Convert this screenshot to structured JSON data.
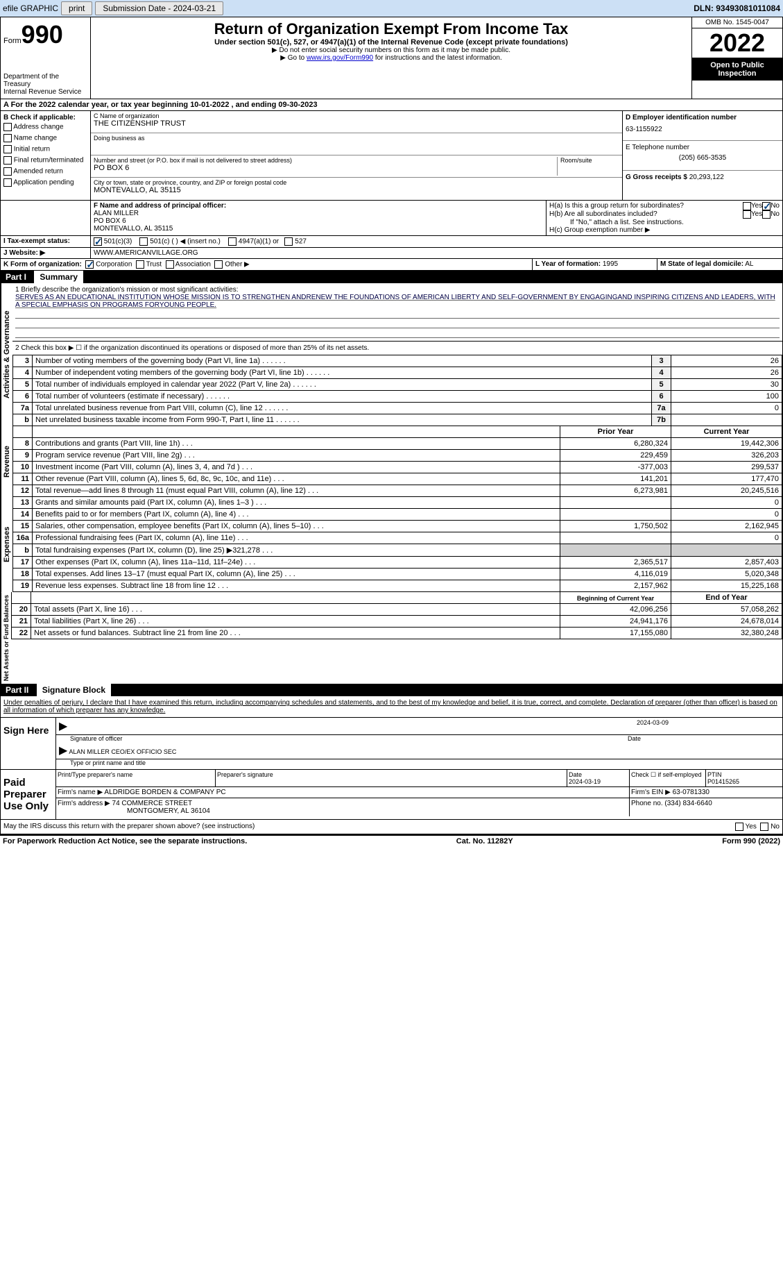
{
  "efile": {
    "graphic": "efile GRAPHIC",
    "print": "print",
    "submission": "Submission Date - 2024-03-21",
    "dln": "DLN: 93493081011084"
  },
  "header": {
    "form": "Form",
    "formnum": "990",
    "dept": "Department of the Treasury",
    "irs": "Internal Revenue Service",
    "title": "Return of Organization Exempt From Income Tax",
    "sub": "Under section 501(c), 527, or 4947(a)(1) of the Internal Revenue Code (except private foundations)",
    "note1": "▶ Do not enter social security numbers on this form as it may be made public.",
    "note2_pre": "▶ Go to ",
    "note2_link": "www.irs.gov/Form990",
    "note2_post": " for instructions and the latest information.",
    "omb": "OMB No. 1545-0047",
    "year": "2022",
    "open": "Open to Public Inspection"
  },
  "a_row": "A For the 2022 calendar year, or tax year beginning 10-01-2022    , and ending 09-30-2023",
  "b": {
    "title": "B Check if applicable:",
    "items": [
      "Address change",
      "Name change",
      "Initial return",
      "Final return/terminated",
      "Amended return",
      "Application pending"
    ]
  },
  "c": {
    "name_label": "C Name of organization",
    "name": "THE CITIZENSHIP TRUST",
    "dba_label": "Doing business as",
    "dba": "",
    "addr_label": "Number and street (or P.O. box if mail is not delivered to street address)",
    "addr": "PO BOX 6",
    "room_label": "Room/suite",
    "city_label": "City or town, state or province, country, and ZIP or foreign postal code",
    "city": "MONTEVALLO, AL  35115"
  },
  "d": {
    "label": "D Employer identification number",
    "val": "63-1155922"
  },
  "e": {
    "label": "E Telephone number",
    "val": "(205) 665-3535"
  },
  "g": {
    "label": "G Gross receipts $",
    "val": "20,293,122"
  },
  "f": {
    "label": "F Name and address of principal officer:",
    "name": "ALAN MILLER",
    "addr": "PO BOX 6",
    "city": "MONTEVALLO, AL  35115"
  },
  "h": {
    "a": "H(a)  Is this a group return for subordinates?",
    "b": "H(b)  Are all subordinates included?",
    "note": "If \"No,\" attach a list. See instructions.",
    "c": "H(c)  Group exemption number ▶"
  },
  "i": {
    "label": "I   Tax-exempt status:",
    "opts": [
      "501(c)(3)",
      "501(c) (  ) ◀ (insert no.)",
      "4947(a)(1) or",
      "527"
    ]
  },
  "j": {
    "label": "J   Website: ▶",
    "val": "WWW.AMERICANVILLAGE.ORG"
  },
  "k": {
    "label": "K Form of organization:",
    "opts": [
      "Corporation",
      "Trust",
      "Association",
      "Other ▶"
    ]
  },
  "l": {
    "label": "L Year of formation:",
    "val": "1995"
  },
  "m": {
    "label": "M State of legal domicile:",
    "val": "AL"
  },
  "part1": {
    "label": "Part I",
    "title": "Summary",
    "line1_label": "1  Briefly describe the organization's mission or most significant activities:",
    "mission": "SERVES AS AN EDUCATIONAL INSTITUTION WHOSE MISSION IS TO STRENGTHEN ANDRENEW THE FOUNDATIONS OF AMERICAN LIBERTY AND SELF-GOVERNMENT BY ENGAGINGAND INSPIRING CITIZENS AND LEADERS, WITH A SPECIAL EMPHASIS ON PROGRAMS FORYOUNG PEOPLE.",
    "line2": "2   Check this box ▶ ☐  if the organization discontinued its operations or disposed of more than 25% of its net assets.",
    "vert_ag": "Activities & Governance",
    "vert_rev": "Revenue",
    "vert_exp": "Expenses",
    "vert_net": "Net Assets or Fund Balances",
    "governance": [
      {
        "n": "3",
        "t": "Number of voting members of the governing body (Part VI, line 1a)",
        "b": "3",
        "v": "26"
      },
      {
        "n": "4",
        "t": "Number of independent voting members of the governing body (Part VI, line 1b)",
        "b": "4",
        "v": "26"
      },
      {
        "n": "5",
        "t": "Total number of individuals employed in calendar year 2022 (Part V, line 2a)",
        "b": "5",
        "v": "30"
      },
      {
        "n": "6",
        "t": "Total number of volunteers (estimate if necessary)",
        "b": "6",
        "v": "100"
      },
      {
        "n": "7a",
        "t": "Total unrelated business revenue from Part VIII, column (C), line 12",
        "b": "7a",
        "v": "0"
      },
      {
        "n": "b",
        "t": "Net unrelated business taxable income from Form 990-T, Part I, line 11",
        "b": "7b",
        "v": ""
      }
    ],
    "col_prior": "Prior Year",
    "col_current": "Current Year",
    "revenue": [
      {
        "n": "8",
        "t": "Contributions and grants (Part VIII, line 1h)",
        "p": "6,280,324",
        "c": "19,442,306"
      },
      {
        "n": "9",
        "t": "Program service revenue (Part VIII, line 2g)",
        "p": "229,459",
        "c": "326,203"
      },
      {
        "n": "10",
        "t": "Investment income (Part VIII, column (A), lines 3, 4, and 7d )",
        "p": "-377,003",
        "c": "299,537"
      },
      {
        "n": "11",
        "t": "Other revenue (Part VIII, column (A), lines 5, 6d, 8c, 9c, 10c, and 11e)",
        "p": "141,201",
        "c": "177,470"
      },
      {
        "n": "12",
        "t": "Total revenue—add lines 8 through 11 (must equal Part VIII, column (A), line 12)",
        "p": "6,273,981",
        "c": "20,245,516"
      }
    ],
    "expenses": [
      {
        "n": "13",
        "t": "Grants and similar amounts paid (Part IX, column (A), lines 1–3 )",
        "p": "",
        "c": "0"
      },
      {
        "n": "14",
        "t": "Benefits paid to or for members (Part IX, column (A), line 4)",
        "p": "",
        "c": "0"
      },
      {
        "n": "15",
        "t": "Salaries, other compensation, employee benefits (Part IX, column (A), lines 5–10)",
        "p": "1,750,502",
        "c": "2,162,945"
      },
      {
        "n": "16a",
        "t": "Professional fundraising fees (Part IX, column (A), line 11e)",
        "p": "",
        "c": "0"
      },
      {
        "n": "b",
        "t": "Total fundraising expenses (Part IX, column (D), line 25) ▶321,278",
        "p": "SHADE",
        "c": "SHADE"
      },
      {
        "n": "17",
        "t": "Other expenses (Part IX, column (A), lines 11a–11d, 11f–24e)",
        "p": "2,365,517",
        "c": "2,857,403"
      },
      {
        "n": "18",
        "t": "Total expenses. Add lines 13–17 (must equal Part IX, column (A), line 25)",
        "p": "4,116,019",
        "c": "5,020,348"
      },
      {
        "n": "19",
        "t": "Revenue less expenses. Subtract line 18 from line 12",
        "p": "2,157,962",
        "c": "15,225,168"
      }
    ],
    "col_begin": "Beginning of Current Year",
    "col_end": "End of Year",
    "netassets": [
      {
        "n": "20",
        "t": "Total assets (Part X, line 16)",
        "p": "42,096,256",
        "c": "57,058,262"
      },
      {
        "n": "21",
        "t": "Total liabilities (Part X, line 26)",
        "p": "24,941,176",
        "c": "24,678,014"
      },
      {
        "n": "22",
        "t": "Net assets or fund balances. Subtract line 21 from line 20",
        "p": "17,155,080",
        "c": "32,380,248"
      }
    ]
  },
  "part2": {
    "label": "Part II",
    "title": "Signature Block",
    "penalty": "Under penalties of perjury, I declare that I have examined this return, including accompanying schedules and statements, and to the best of my knowledge and belief, it is true, correct, and complete. Declaration of preparer (other than officer) is based on all information of which preparer has any knowledge.",
    "sign_here": "Sign Here",
    "sig_officer": "Signature of officer",
    "sig_date": "2024-03-09",
    "date_label": "Date",
    "officer_name": "ALAN MILLER  CEO/EX OFFICIO SEC",
    "type_name": "Type or print name and title",
    "paid": "Paid Preparer Use Only",
    "prep_name_label": "Print/Type preparer's name",
    "prep_name": "",
    "prep_sig_label": "Preparer's signature",
    "prep_date_label": "Date",
    "prep_date": "2024-03-19",
    "check_self": "Check ☐ if self-employed",
    "ptin_label": "PTIN",
    "ptin": "P01415265",
    "firm_name_label": "Firm's name    ▶",
    "firm_name": "ALDRIDGE BORDEN & COMPANY PC",
    "firm_ein_label": "Firm's EIN ▶",
    "firm_ein": "63-0781330",
    "firm_addr_label": "Firm's address ▶",
    "firm_addr1": "74 COMMERCE STREET",
    "firm_addr2": "MONTGOMERY, AL  36104",
    "phone_label": "Phone no.",
    "phone": "(334) 834-6640",
    "discuss": "May the IRS discuss this return with the preparer shown above? (see instructions)",
    "yes": "Yes",
    "no": "No"
  },
  "footer": {
    "left": "For Paperwork Reduction Act Notice, see the separate instructions.",
    "mid": "Cat. No. 11282Y",
    "right": "Form 990 (2022)"
  }
}
